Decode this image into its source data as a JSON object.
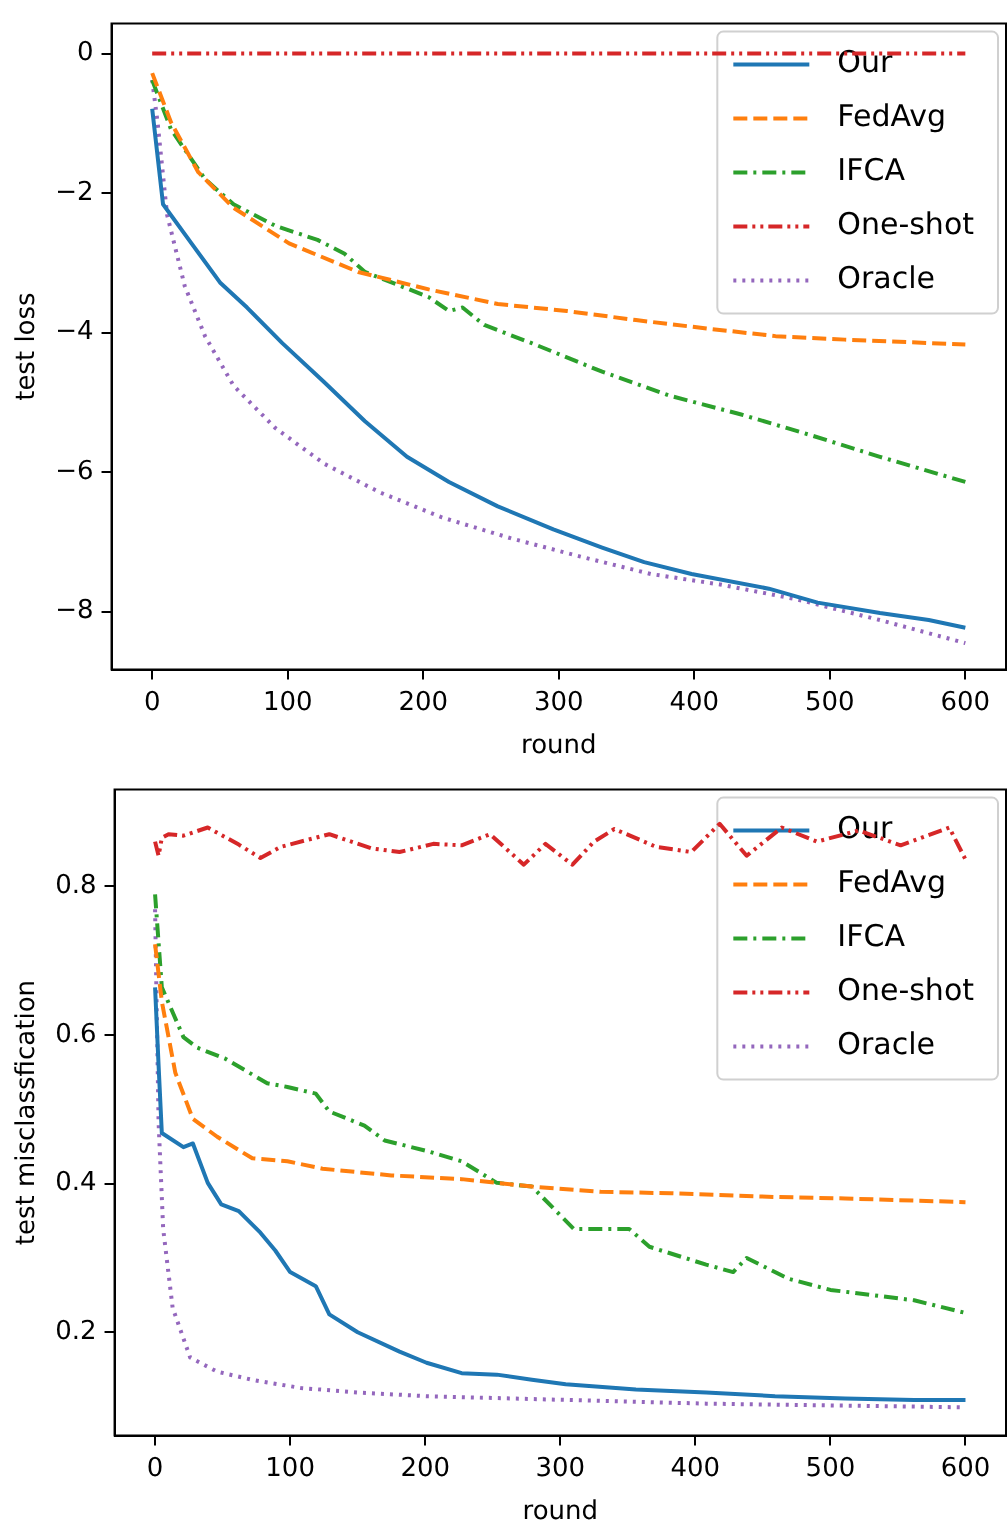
{
  "chart_data": [
    {
      "type": "line",
      "xlabel": "round",
      "ylabel": "test loss",
      "xlim": [
        -30,
        630
      ],
      "ylim": [
        -8.83,
        0.43
      ],
      "xticks": [
        0,
        100,
        200,
        300,
        400,
        500,
        600
      ],
      "yticks": [
        {
          "value": -8,
          "label": "−8"
        },
        {
          "value": -6,
          "label": "−6"
        },
        {
          "value": -4,
          "label": "−4"
        },
        {
          "value": -2,
          "label": "−2"
        },
        0
      ],
      "grid": false,
      "legend": "top right",
      "marker": "none",
      "series": [
        {
          "name": "Our",
          "color": "#1f77b4",
          "line_style": "solid",
          "x": [
            0,
            8,
            29,
            50,
            70,
            96,
            127,
            157,
            188,
            219,
            255,
            296,
            332,
            363,
            398,
            455,
            491,
            537,
            573,
            600
          ],
          "values": [
            -0.79,
            -2.16,
            -2.72,
            -3.28,
            -3.64,
            -4.15,
            -4.71,
            -5.27,
            -5.78,
            -6.14,
            -6.49,
            -6.82,
            -7.08,
            -7.29,
            -7.46,
            -7.67,
            -7.87,
            -8.02,
            -8.12,
            -8.23
          ]
        },
        {
          "name": "FedAvg",
          "color": "#ff7f0e",
          "line_style": "dashed",
          "x": [
            0,
            14,
            34,
            60,
            101,
            152,
            204,
            255,
            306,
            357,
            409,
            460,
            511,
            600
          ],
          "values": [
            -0.28,
            -0.99,
            -1.7,
            -2.21,
            -2.72,
            -3.13,
            -3.38,
            -3.59,
            -3.69,
            -3.82,
            -3.94,
            -4.05,
            -4.1,
            -4.17
          ]
        },
        {
          "name": "IFCA",
          "color": "#2ca02c",
          "line_style": "dashdot",
          "x": [
            0,
            14,
            39,
            60,
            91,
            122,
            142,
            157,
            204,
            219,
            229,
            245,
            280,
            332,
            383,
            434,
            486,
            537,
            600
          ],
          "values": [
            -0.38,
            -1.09,
            -1.8,
            -2.16,
            -2.47,
            -2.67,
            -2.87,
            -3.13,
            -3.49,
            -3.69,
            -3.64,
            -3.89,
            -4.15,
            -4.56,
            -4.91,
            -5.17,
            -5.47,
            -5.78,
            -6.14
          ]
        },
        {
          "name": "One-shot",
          "color": "#d62728",
          "line_style": "dashdotdot",
          "x": [
            0,
            100,
            200,
            300,
            400,
            500,
            600
          ],
          "values": [
            0,
            0,
            0,
            0,
            0,
            0,
            0
          ]
        },
        {
          "name": "Oracle",
          "color": "#9467bd",
          "line_style": "dotted",
          "x": [
            0,
            4,
            11,
            24,
            39,
            60,
            91,
            127,
            168,
            214,
            265,
            316,
            368,
            419,
            475,
            537,
            600
          ],
          "values": [
            -0.38,
            -0.99,
            -2.31,
            -3.33,
            -4.05,
            -4.76,
            -5.37,
            -5.88,
            -6.29,
            -6.65,
            -6.95,
            -7.21,
            -7.46,
            -7.61,
            -7.82,
            -8.12,
            -8.45
          ]
        }
      ]
    },
    {
      "type": "line",
      "xlabel": "round",
      "ylabel": "test misclassfication",
      "xlim": [
        -30,
        630
      ],
      "ylim": [
        0.061,
        0.93
      ],
      "xticks": [
        0,
        100,
        200,
        300,
        400,
        500,
        600
      ],
      "yticks": [
        0.2,
        0.4,
        0.6,
        0.8
      ],
      "grid": false,
      "legend": "top right",
      "marker": "none",
      "series": [
        {
          "name": "Our",
          "color": "#1f77b4",
          "line_style": "solid",
          "x": [
            0,
            2.6,
            5,
            21,
            28,
            39,
            49,
            62,
            78,
            89,
            100,
            119,
            129,
            150,
            181,
            201,
            227,
            253,
            279,
            304,
            356,
            408,
            459,
            511,
            562,
            600
          ],
          "values": [
            0.664,
            0.559,
            0.468,
            0.449,
            0.454,
            0.401,
            0.372,
            0.363,
            0.334,
            0.31,
            0.281,
            0.262,
            0.224,
            0.2,
            0.174,
            0.159,
            0.145,
            0.143,
            0.136,
            0.13,
            0.123,
            0.119,
            0.114,
            0.111,
            0.109,
            0.109
          ]
        },
        {
          "name": "FedAvg",
          "color": "#ff7f0e",
          "line_style": "dashed",
          "x": [
            0,
            5,
            15,
            28,
            46,
            72,
            98,
            124,
            175,
            227,
            279,
            330,
            382,
            459,
            511,
            600
          ],
          "values": [
            0.722,
            0.645,
            0.549,
            0.487,
            0.463,
            0.434,
            0.43,
            0.42,
            0.411,
            0.406,
            0.396,
            0.389,
            0.387,
            0.382,
            0.38,
            0.375
          ]
        },
        {
          "name": "IFCA",
          "color": "#2ca02c",
          "line_style": "dashdot",
          "x": [
            0,
            5,
            21,
            31,
            52,
            83,
            98,
            119,
            129,
            155,
            170,
            201,
            227,
            253,
            279,
            310,
            351,
            366,
            408,
            428,
            438,
            469,
            500,
            562,
            600
          ],
          "values": [
            0.789,
            0.664,
            0.597,
            0.583,
            0.568,
            0.535,
            0.53,
            0.521,
            0.497,
            0.478,
            0.458,
            0.444,
            0.43,
            0.401,
            0.396,
            0.339,
            0.339,
            0.315,
            0.291,
            0.281,
            0.3,
            0.272,
            0.257,
            0.243,
            0.226
          ]
        },
        {
          "name": "One-shot",
          "color": "#d62728",
          "line_style": "dashdotdot",
          "x": [
            0,
            2.6,
            5,
            10,
            21,
            39,
            62,
            78,
            93,
            129,
            160,
            181,
            206,
            227,
            248,
            273,
            289,
            309,
            325,
            340,
            371,
            397,
            418,
            438,
            464,
            490,
            521,
            552,
            588,
            600
          ],
          "values": [
            0.86,
            0.841,
            0.865,
            0.87,
            0.868,
            0.879,
            0.856,
            0.838,
            0.853,
            0.87,
            0.851,
            0.846,
            0.857,
            0.855,
            0.87,
            0.829,
            0.857,
            0.829,
            0.86,
            0.877,
            0.853,
            0.846,
            0.884,
            0.841,
            0.879,
            0.86,
            0.875,
            0.855,
            0.879,
            0.836
          ]
        },
        {
          "name": "Oracle",
          "color": "#9467bd",
          "line_style": "dotted",
          "x": [
            0,
            2.6,
            6,
            13,
            26,
            46,
            72,
            108,
            150,
            201,
            304,
            408,
            600
          ],
          "values": [
            0.769,
            0.482,
            0.339,
            0.233,
            0.166,
            0.147,
            0.136,
            0.125,
            0.119,
            0.114,
            0.109,
            0.104,
            0.099
          ]
        }
      ]
    }
  ]
}
